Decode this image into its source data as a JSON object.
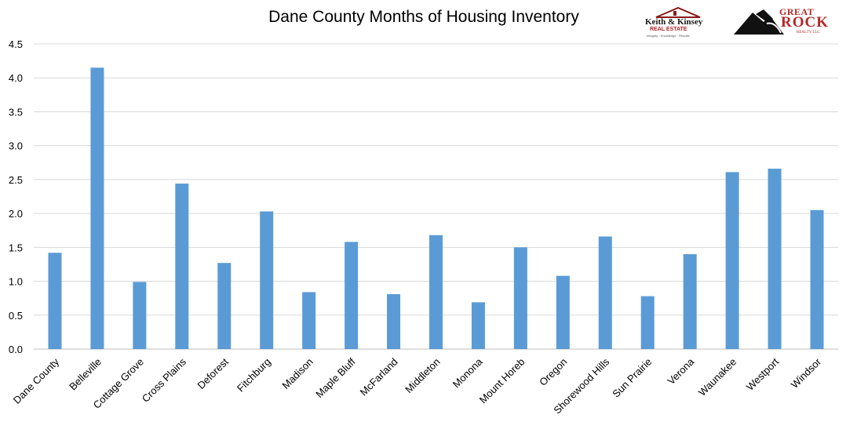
{
  "chart_data": {
    "type": "bar",
    "title": "Dane County Months of Housing Inventory",
    "xlabel": "",
    "ylabel": "",
    "categories": [
      "Dane County",
      "Belleville",
      "Cottage Grove",
      "Cross Plains",
      "Deforest",
      "Fitchburg",
      "Madison",
      "Maple Bluff",
      "McFarland",
      "Middleton",
      "Monona",
      "Mount Horeb",
      "Oregon",
      "Shorewood Hills",
      "Sun Prairie",
      "Verona",
      "Waunakee",
      "Westport",
      "Windsor"
    ],
    "values": [
      1.42,
      4.15,
      0.99,
      2.44,
      1.27,
      2.03,
      0.84,
      1.58,
      0.81,
      1.68,
      0.69,
      1.5,
      1.08,
      1.66,
      0.78,
      1.4,
      2.61,
      2.66,
      2.05
    ],
    "ylim": [
      0,
      4.5
    ],
    "yticks": [
      "0.0",
      "0.5",
      "1.0",
      "1.5",
      "2.0",
      "2.5",
      "3.0",
      "3.5",
      "4.0",
      "4.5"
    ],
    "grid": true,
    "legend": "none",
    "bar_color": "#5b9bd5",
    "grid_color": "#d9d9d9"
  },
  "logos": {
    "keith_kinsey": {
      "name": "Keith & Kinsey",
      "sub": "REAL ESTATE",
      "tagline": "Integrity · Knowledge · Results"
    },
    "great_rock": {
      "great": "GREAT",
      "rock": "ROCK",
      "realty": "REALTY LLC"
    }
  }
}
